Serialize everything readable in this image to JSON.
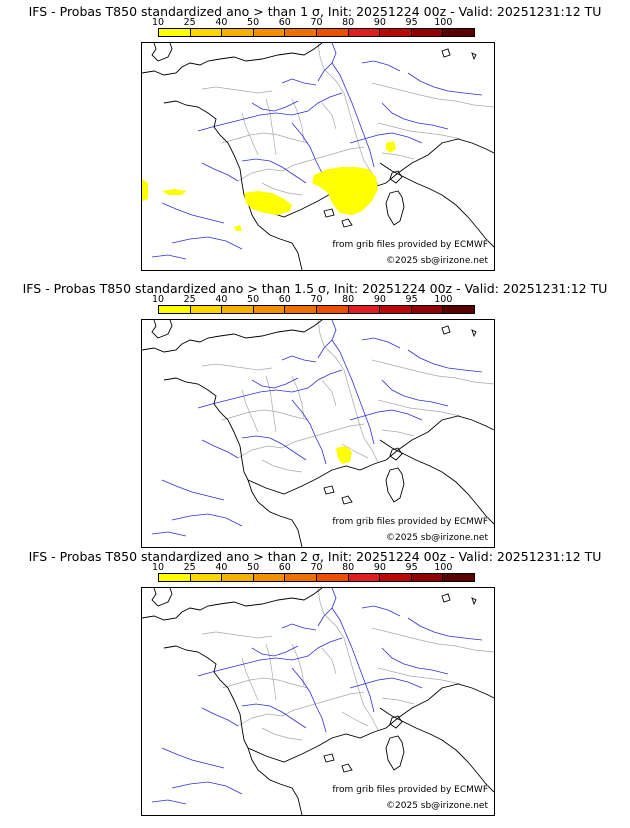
{
  "colorbar": {
    "ticks": [
      "10",
      "25",
      "40",
      "50",
      "60",
      "70",
      "80",
      "90",
      "95",
      "100"
    ],
    "colors": [
      "#ffff00",
      "#ffd700",
      "#f5b000",
      "#f29000",
      "#ee7000",
      "#ea5000",
      "#e02020",
      "#b80808",
      "#900000",
      "#5a0000"
    ]
  },
  "panels": [
    {
      "title": "IFS - Probas T850  standardized ano > than 1 σ, Init: 20251224 00z - Valid: 20251231:12 TU",
      "credit_source": "from grib files provided by ECMWF",
      "credit_copyright": "©2025 sb@irizone.net"
    },
    {
      "title": "IFS - Probas T850  standardized ano > than 1.5 σ, Init: 20251224 00z - Valid: 20251231:12 TU",
      "credit_source": "from grib files provided by ECMWF",
      "credit_copyright": "©2025 sb@irizone.net"
    },
    {
      "title": "IFS - Probas T850  standardized ano > than 2 σ, Init: 20251224 00z - Valid: 20251231:12 TU",
      "credit_source": "from grib files provided by ECMWF",
      "credit_copyright": "©2025 sb@irizone.net"
    }
  ],
  "map_colors": {
    "coast": "#000000",
    "rivers": "#3030d8",
    "borders": "#a8a8a8",
    "probability_fill": "#ffff00"
  }
}
